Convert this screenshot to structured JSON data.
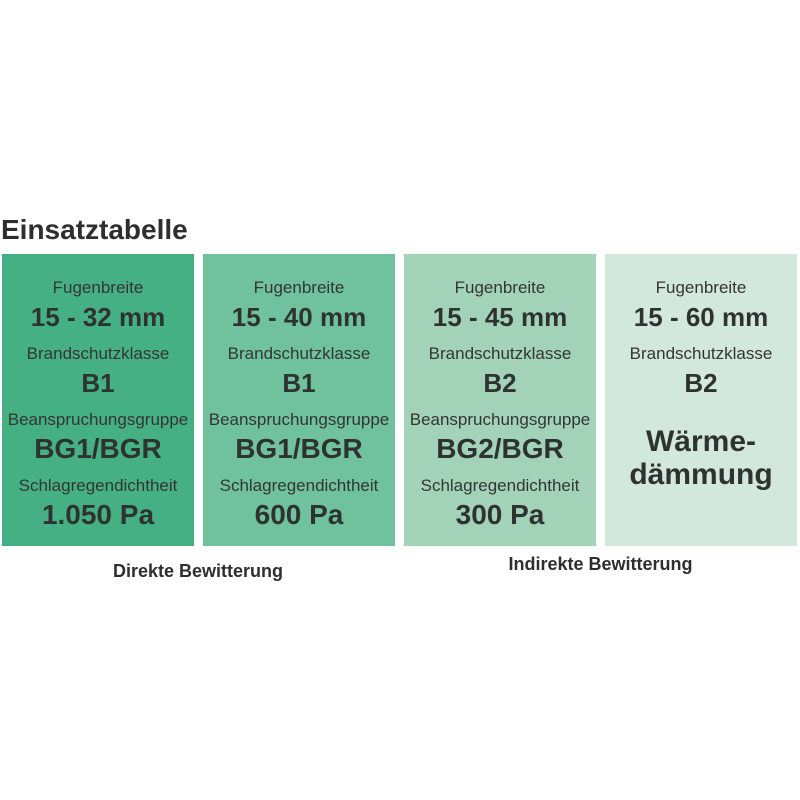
{
  "title": "Einsatztabelle",
  "columns": [
    {
      "bg_color": "#46B085",
      "rows": [
        {
          "label": "Fugenbreite",
          "value": "15 - 32 mm"
        },
        {
          "label": "Brandschutzklasse",
          "value": "B1"
        },
        {
          "label": "Beanspruchungsgruppe",
          "value": "BG1/BGR"
        },
        {
          "label": "Schlagregendichtheit",
          "value": "1.050 Pa"
        }
      ]
    },
    {
      "bg_color": "#70C29E",
      "rows": [
        {
          "label": "Fugenbreite",
          "value": "15 - 40 mm"
        },
        {
          "label": "Brandschutzklasse",
          "value": "B1"
        },
        {
          "label": "Beanspruchungsgruppe",
          "value": "BG1/BGR"
        },
        {
          "label": "Schlagregendichtheit",
          "value": "600 Pa"
        }
      ]
    },
    {
      "bg_color": "#A2D3B9",
      "rows": [
        {
          "label": "Fugenbreite",
          "value": "15 - 45 mm"
        },
        {
          "label": "Brandschutzklasse",
          "value": "B2"
        },
        {
          "label": "Beanspruchungsgruppe",
          "value": "BG2/BGR"
        },
        {
          "label": "Schlagregendichtheit",
          "value": "300 Pa"
        }
      ]
    },
    {
      "bg_color": "#D3E8DC",
      "rows": [
        {
          "label": "Fugenbreite",
          "value": "15 - 60 mm"
        },
        {
          "label": "Brandschutzklasse",
          "value": "B2"
        },
        {
          "value_lines": [
            "Wärme-",
            "dämmung"
          ]
        }
      ]
    }
  ],
  "captions": {
    "direkte": "Direkte Bewitterung",
    "indirekte": "Indirekte Bewitterung"
  },
  "chart_data": {
    "type": "table",
    "title": "Einsatztabelle",
    "attribute_labels": [
      "Fugenbreite",
      "Brandschutzklasse",
      "Beanspruchungsgruppe",
      "Schlagregendichtheit"
    ],
    "columns": [
      {
        "fugenbreite": "15 - 32 mm",
        "brandschutzklasse": "B1",
        "beanspruchungsgruppe": "BG1/BGR",
        "schlagregendichtheit": "1.050 Pa",
        "bewitterung": "Direkte Bewitterung",
        "bg_color": "#46B085"
      },
      {
        "fugenbreite": "15 - 40 mm",
        "brandschutzklasse": "B1",
        "beanspruchungsgruppe": "BG1/BGR",
        "schlagregendichtheit": "600 Pa",
        "bewitterung": "Direkte Bewitterung",
        "bg_color": "#70C29E"
      },
      {
        "fugenbreite": "15 - 45 mm",
        "brandschutzklasse": "B2",
        "beanspruchungsgruppe": "BG2/BGR",
        "schlagregendichtheit": "300 Pa",
        "bewitterung": "Indirekte Bewitterung",
        "bg_color": "#A2D3B9"
      },
      {
        "fugenbreite": "15 - 60 mm",
        "brandschutzklasse": "B2",
        "sonstiges": "Wärme-dämmung",
        "bewitterung": "Indirekte Bewitterung",
        "bg_color": "#D3E8DC"
      }
    ],
    "layout": {
      "grid": false,
      "legend": "none"
    }
  }
}
